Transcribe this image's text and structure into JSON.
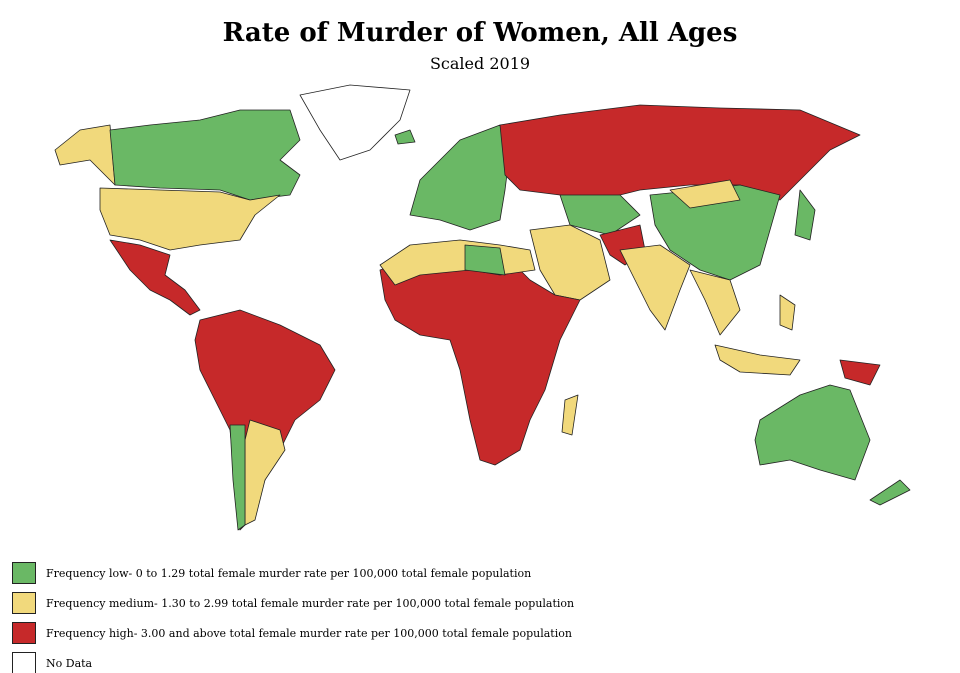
{
  "title": "Rate of Murder of Women, All Ages",
  "subtitle": "Scaled 2019",
  "legend": [
    {
      "color": "#6ab865",
      "label": "Frequency low- 0 to 1.29 total female murder rate per 100,000 total female population"
    },
    {
      "color": "#f1d97c",
      "label": "Frequency medium- 1.30 to 2.99 total female murder rate per 100,000 total female population"
    },
    {
      "color": "#c6292a",
      "label": "Frequency high- 3.00 and above total female murder rate per 100,000 total female population"
    },
    {
      "color": "#ffffff",
      "label": "No Data"
    }
  ]
}
